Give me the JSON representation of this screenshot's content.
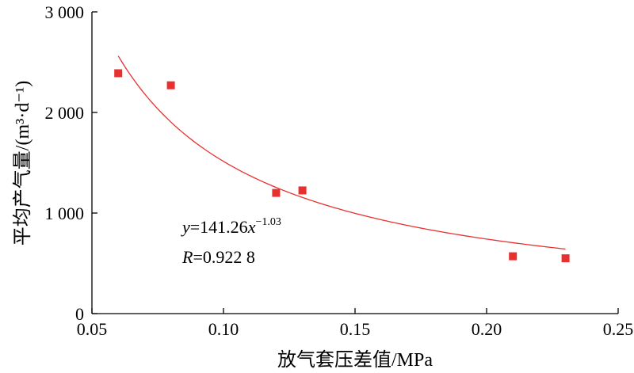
{
  "chart_data": {
    "type": "scatter",
    "xlabel": "放气套压差值/MPa",
    "ylabel": "平均产气量/(m³·d⁻¹)",
    "xlim": [
      0.05,
      0.25
    ],
    "ylim": [
      0,
      3000
    ],
    "x_ticks": [
      0.05,
      0.1,
      0.15,
      0.2,
      0.25
    ],
    "x_tick_labels": [
      "0.05",
      "0.10",
      "0.15",
      "0.20",
      "0.25"
    ],
    "y_ticks": [
      0,
      1000,
      2000,
      3000
    ],
    "y_tick_labels": [
      "0",
      "1 000",
      "2 000",
      "3 000"
    ],
    "grid": false,
    "series": [
      {
        "marker": "square",
        "color": "#e8312f",
        "x": [
          0.06,
          0.08,
          0.12,
          0.13,
          0.21,
          0.23
        ],
        "y": [
          2390,
          2270,
          1200,
          1225,
          570,
          550
        ]
      }
    ],
    "fit": {
      "color": "#e8312f",
      "coef": 141.26,
      "exponent": -1.03,
      "x_range": [
        0.06,
        0.23
      ]
    },
    "annotations": {
      "equation_var_y": "y",
      "equation_mid": "=141.26",
      "equation_var_x": "x",
      "equation_exp": "−1.03",
      "r_var": "R",
      "r_value": "=0.922 8"
    }
  }
}
